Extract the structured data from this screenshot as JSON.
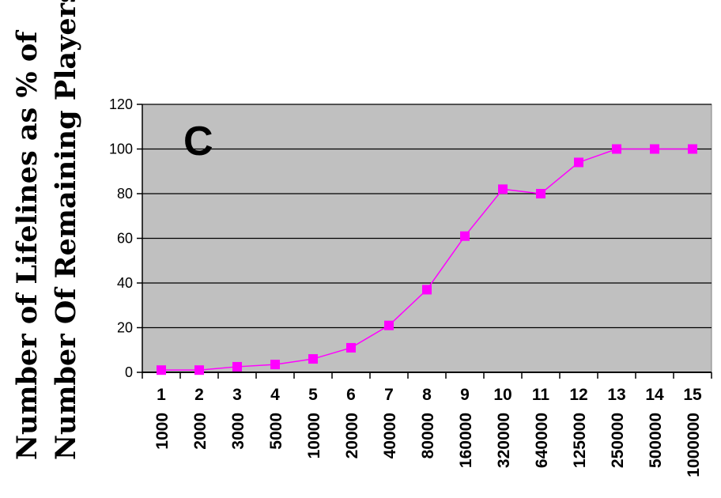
{
  "chart_data": {
    "type": "line",
    "panel_label": "C",
    "ylabel_line1": "Number of Lifelines as % of",
    "ylabel_line2": "Number Of Remaining Players",
    "ylim": [
      0,
      120
    ],
    "yticks": [
      0,
      20,
      40,
      60,
      80,
      100,
      120
    ],
    "grid": true,
    "categories": [
      "1",
      "2",
      "3",
      "4",
      "5",
      "6",
      "7",
      "8",
      "9",
      "10",
      "11",
      "12",
      "13",
      "14",
      "15"
    ],
    "amounts": [
      "1000",
      "2000",
      "3000",
      "5000",
      "10000",
      "20000",
      "40000",
      "80000",
      "160000",
      "320000",
      "640000",
      "125000",
      "250000",
      "500000",
      "1000000"
    ],
    "series": [
      {
        "values": [
          1,
          1,
          2.5,
          3.5,
          6,
          11,
          21,
          37,
          61,
          82,
          80,
          94,
          100,
          100,
          100
        ],
        "color": "#ff00ff"
      }
    ],
    "colors": {
      "plot_bg": "#c0c0c0",
      "grid": "#000000",
      "line": "#ff00ff"
    }
  }
}
